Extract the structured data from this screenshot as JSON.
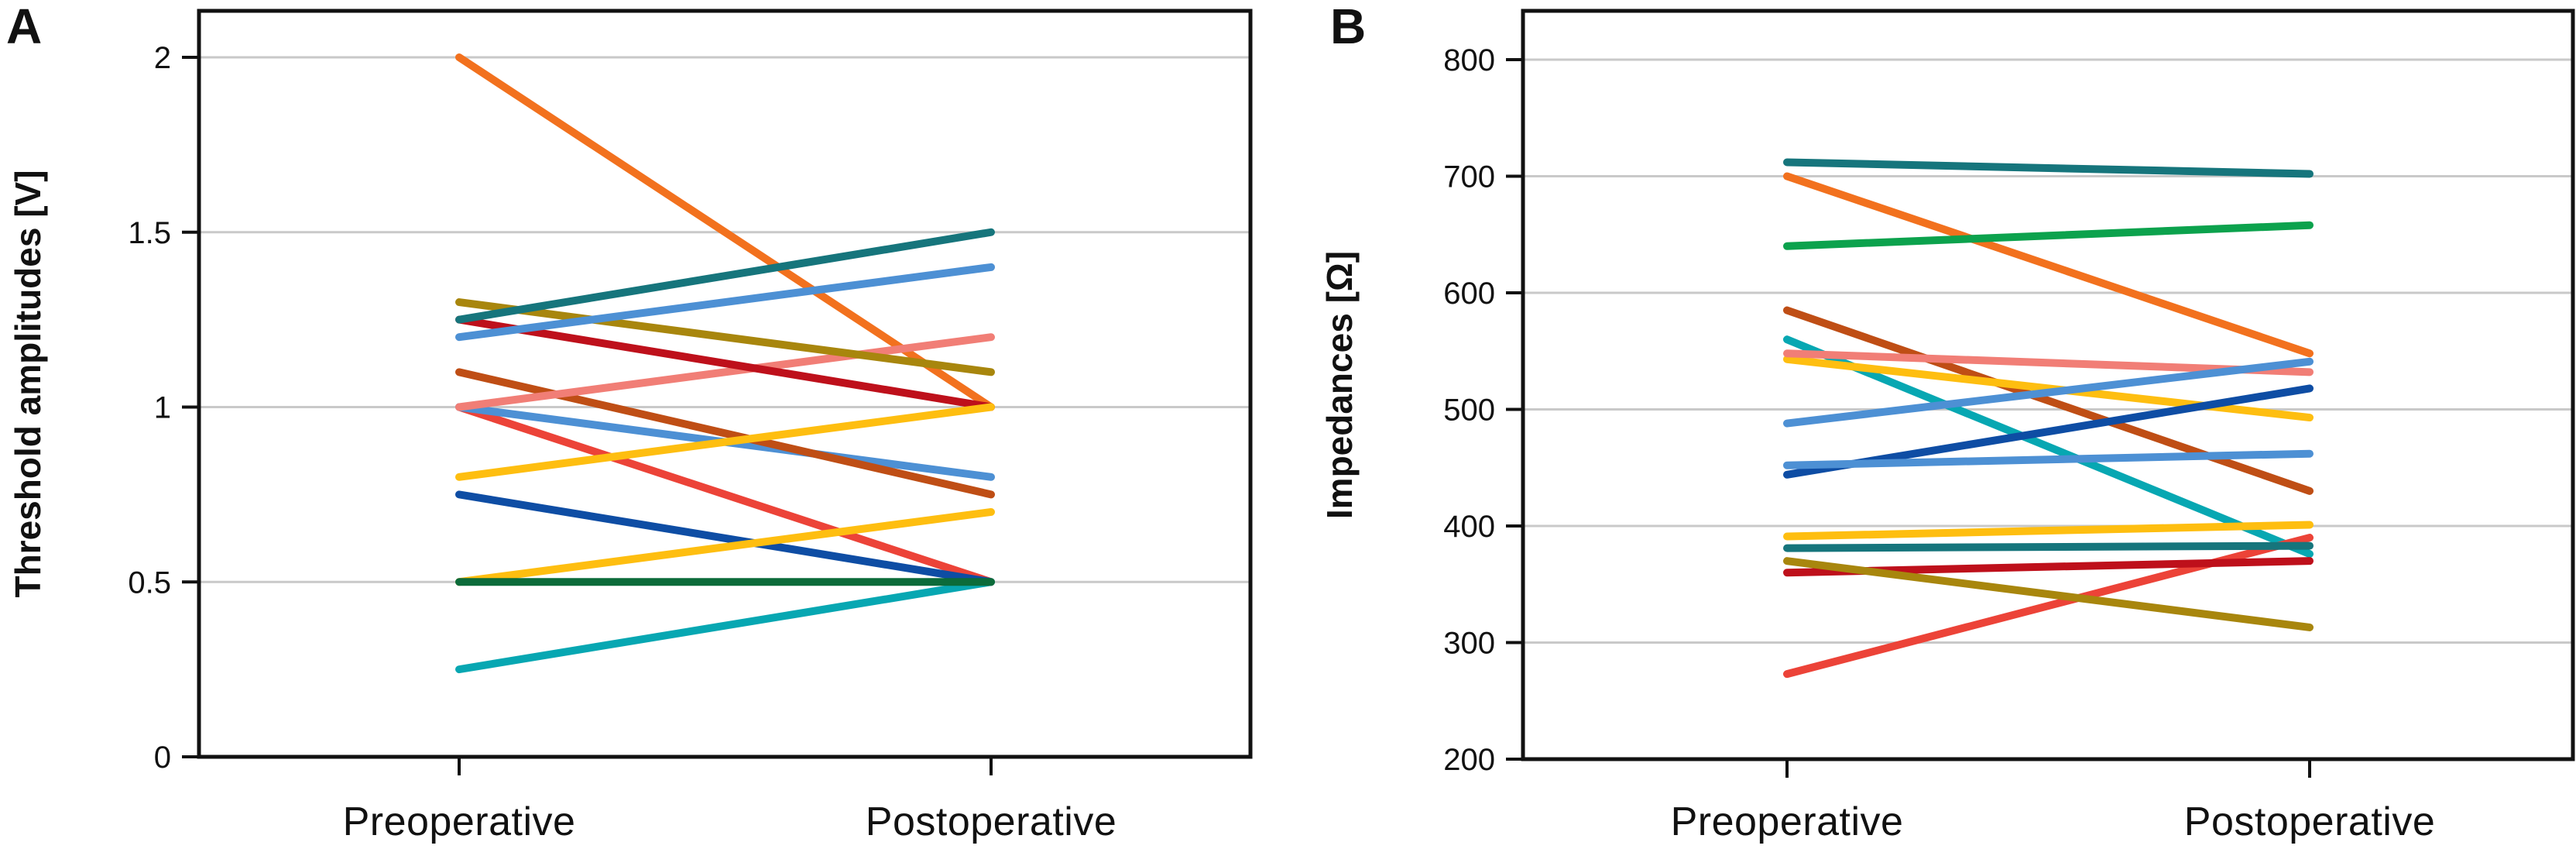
{
  "figure": {
    "background": "#ffffff",
    "frame_color": "#111111",
    "gridline_color": "#c9c9c9"
  },
  "chart_data": [
    {
      "type": "line",
      "panel_label": "A",
      "title": "",
      "xlabel": "",
      "ylabel": "Threshold amplitudes [V]",
      "categories": [
        "Preoperative",
        "Postoperative"
      ],
      "ylim": [
        0,
        2
      ],
      "yticks": [
        0,
        0.5,
        1,
        1.5,
        2
      ],
      "ytick_labels": [
        "0",
        "0.5",
        "1",
        "1.5",
        "2"
      ],
      "grid": true,
      "legend": "none",
      "series": [
        {
          "name": "orange",
          "color": "#F2711E",
          "values": [
            2.0,
            1.0
          ]
        },
        {
          "name": "tomato",
          "color": "#EC4338",
          "values": [
            1.0,
            0.5
          ]
        },
        {
          "name": "cornflower-2",
          "color": "#4D90D4",
          "values": [
            1.0,
            0.8
          ]
        },
        {
          "name": "sienna",
          "color": "#BF4E15",
          "values": [
            1.1,
            0.75
          ]
        },
        {
          "name": "salmon",
          "color": "#F17E76",
          "values": [
            1.0,
            1.2
          ]
        },
        {
          "name": "navy",
          "color": "#0E4DA4",
          "values": [
            0.75,
            0.5
          ]
        },
        {
          "name": "cyan",
          "color": "#07A7B2",
          "values": [
            0.25,
            0.5
          ]
        },
        {
          "name": "dark-red",
          "color": "#BE101B",
          "values": [
            1.25,
            1.0
          ]
        },
        {
          "name": "olive",
          "color": "#A8860D",
          "values": [
            1.3,
            1.1
          ]
        },
        {
          "name": "dark-teal",
          "color": "#16757C",
          "values": [
            1.25,
            1.5
          ]
        },
        {
          "name": "cornflower-1",
          "color": "#4D90D4",
          "values": [
            1.2,
            1.4
          ]
        },
        {
          "name": "gold-1",
          "color": "#FEBE10",
          "values": [
            0.8,
            1.0
          ]
        },
        {
          "name": "gold-2",
          "color": "#FEBE10",
          "values": [
            0.5,
            0.7
          ]
        },
        {
          "name": "dark-green",
          "color": "#0C6B3A",
          "values": [
            0.5,
            0.5
          ]
        }
      ]
    },
    {
      "type": "line",
      "panel_label": "B",
      "title": "",
      "xlabel": "",
      "ylabel": "Impedances [Ω]",
      "categories": [
        "Preoperative",
        "Postoperative"
      ],
      "ylim": [
        200,
        800
      ],
      "yticks": [
        200,
        300,
        400,
        500,
        600,
        700,
        800
      ],
      "ytick_labels": [
        "200",
        "300",
        "400",
        "500",
        "600",
        "700",
        "800"
      ],
      "grid": true,
      "legend": "none",
      "series": [
        {
          "name": "orange",
          "color": "#F2711E",
          "values": [
            700,
            548
          ]
        },
        {
          "name": "sienna",
          "color": "#BF4E15",
          "values": [
            585,
            430
          ]
        },
        {
          "name": "cyan",
          "color": "#07A7B2",
          "values": [
            560,
            376
          ]
        },
        {
          "name": "tomato",
          "color": "#EC4338",
          "values": [
            273,
            390
          ]
        },
        {
          "name": "gold-1",
          "color": "#FEBE10",
          "values": [
            543,
            493
          ]
        },
        {
          "name": "salmon",
          "color": "#F17E76",
          "values": [
            548,
            532
          ]
        },
        {
          "name": "cornflower-1",
          "color": "#4D90D4",
          "values": [
            488,
            541
          ]
        },
        {
          "name": "navy",
          "color": "#0E4DA4",
          "values": [
            444,
            518
          ]
        },
        {
          "name": "cornflower-2",
          "color": "#4D90D4",
          "values": [
            452,
            462
          ]
        },
        {
          "name": "gold-2",
          "color": "#FEBE10",
          "values": [
            391,
            401
          ]
        },
        {
          "name": "dark-red",
          "color": "#BE101B",
          "values": [
            360,
            370
          ]
        },
        {
          "name": "dark-teal-2",
          "color": "#16757C",
          "values": [
            381,
            383
          ]
        },
        {
          "name": "olive",
          "color": "#A8860D",
          "values": [
            370,
            313
          ]
        },
        {
          "name": "green",
          "color": "#0CA24D",
          "values": [
            640,
            658
          ]
        },
        {
          "name": "dark-teal-1",
          "color": "#16757C",
          "values": [
            712,
            702
          ]
        }
      ]
    }
  ]
}
